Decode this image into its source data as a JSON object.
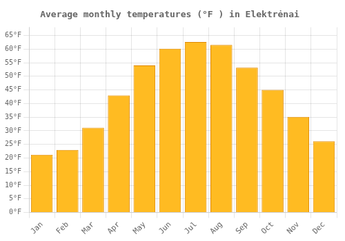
{
  "chart_data": {
    "type": "bar",
    "title": "Average monthly temperatures (°F ) in Elektrėnai",
    "categories": [
      "Jan",
      "Feb",
      "Mar",
      "Apr",
      "May",
      "Jun",
      "Jul",
      "Aug",
      "Sep",
      "Oct",
      "Nov",
      "Dec"
    ],
    "values": [
      21.2,
      23.0,
      31.1,
      43.0,
      54.0,
      60.1,
      62.6,
      61.5,
      53.2,
      45.0,
      35.1,
      26.1
    ],
    "color": "#FFBB22",
    "ylim": [
      0,
      68
    ],
    "yticks": [
      {
        "value": 0,
        "label": "0°F"
      },
      {
        "value": 5,
        "label": "5°F"
      },
      {
        "value": 10,
        "label": "10°F"
      },
      {
        "value": 15,
        "label": "15°F"
      },
      {
        "value": 20,
        "label": "20°F"
      },
      {
        "value": 25,
        "label": "25°F"
      },
      {
        "value": 30,
        "label": "30°F"
      },
      {
        "value": 35,
        "label": "35°F"
      },
      {
        "value": 40,
        "label": "40°F"
      },
      {
        "value": 45,
        "label": "45°F"
      },
      {
        "value": 50,
        "label": "50°F"
      },
      {
        "value": 55,
        "label": "55°F"
      },
      {
        "value": 60,
        "label": "60°F"
      },
      {
        "value": 65,
        "label": "65°F"
      }
    ],
    "grid": true
  }
}
